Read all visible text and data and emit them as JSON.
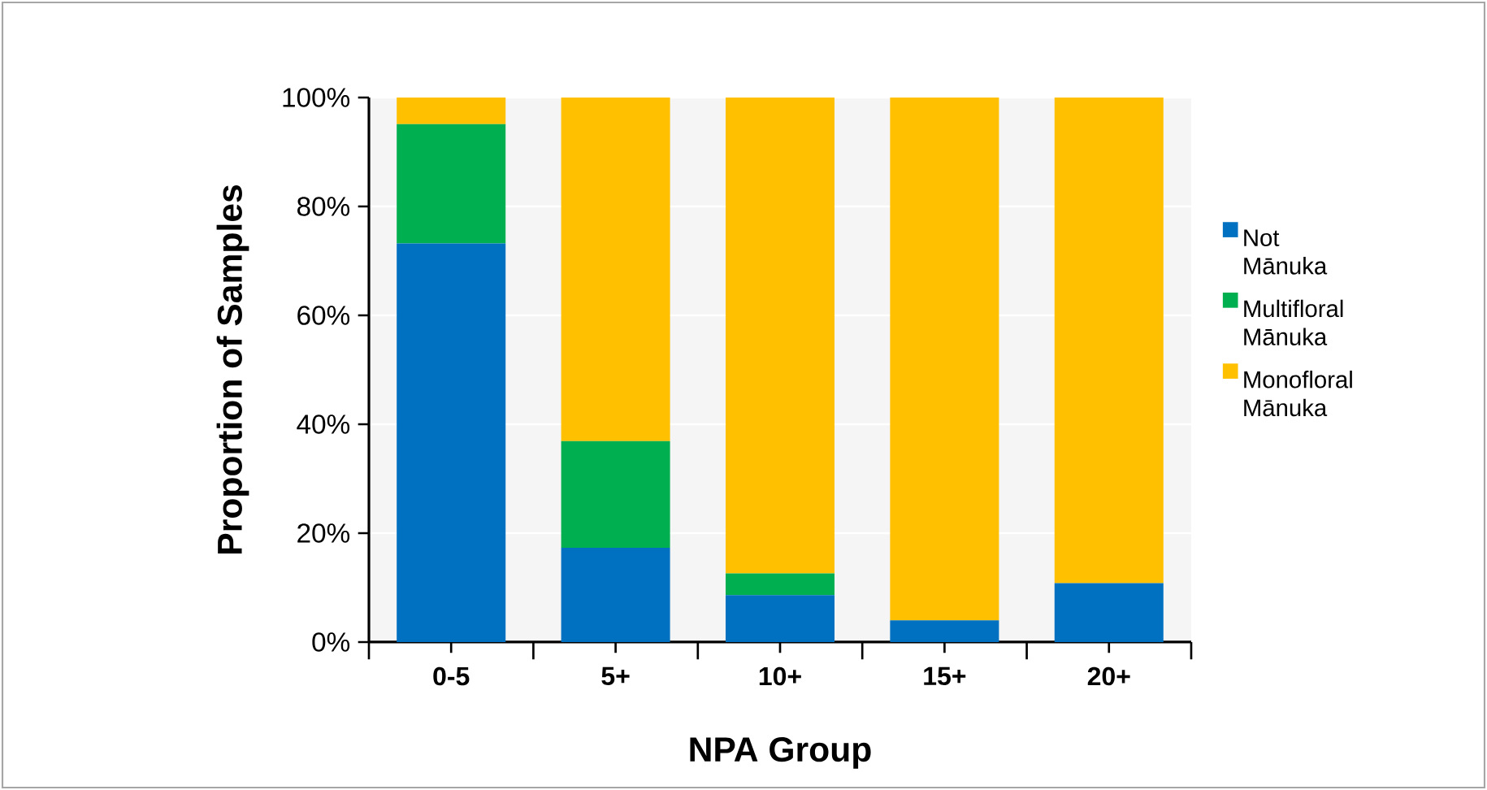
{
  "chart_data": {
    "type": "bar",
    "stacked": true,
    "xlabel": "NPA Group",
    "ylabel": "Proportion of Samples",
    "categories": [
      "0-5",
      "5+",
      "10+",
      "15+",
      "20+"
    ],
    "series": [
      {
        "name": "Not Mānuka",
        "color": "#0070c0",
        "values": [
          73.2,
          17.3,
          8.6,
          4.0,
          10.8
        ]
      },
      {
        "name": "Multifloral Mānuka",
        "color": "#00b050",
        "values": [
          21.9,
          19.6,
          4.0,
          0,
          0
        ]
      },
      {
        "name": "Monofloral Mānuka",
        "color": "#ffc000",
        "values": [
          4.9,
          63.1,
          87.4,
          96.0,
          89.2
        ]
      }
    ],
    "ylim": [
      0,
      100
    ],
    "yticks": [
      {
        "value": 0,
        "label": "0%"
      },
      {
        "value": 20,
        "label": "20%"
      },
      {
        "value": 40,
        "label": "40%"
      },
      {
        "value": 60,
        "label": "60%"
      },
      {
        "value": 80,
        "label": "80%"
      },
      {
        "value": 100,
        "label": "100%"
      }
    ],
    "grid": "y",
    "legend": "right"
  }
}
